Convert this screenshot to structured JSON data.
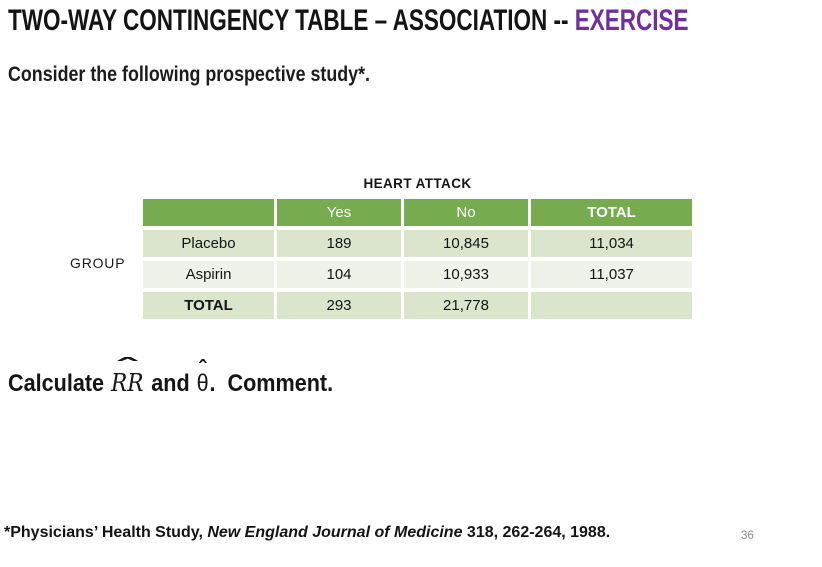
{
  "slide": {
    "title": {
      "main": "TWO-WAY CONTINGENCY TABLE – ASSOCIATION -- ",
      "highlight": "EXERCISE"
    },
    "subtitle": "Consider the following prospective study*.",
    "table": {
      "top_label": "HEART ATTACK",
      "side_label": "GROUP",
      "columns": [
        "",
        "Yes",
        "No",
        "TOTAL"
      ],
      "rows": [
        {
          "label": "Placebo",
          "values": [
            "189",
            "10,845",
            "11,034"
          ]
        },
        {
          "label": "Aspirin",
          "values": [
            "104",
            "10,933",
            "11,037"
          ]
        },
        {
          "label": "TOTAL",
          "values": [
            "293",
            "21,778",
            ""
          ]
        }
      ]
    },
    "exercise_line": {
      "prefix": "Calculate ",
      "rr": "RR",
      "hat": "ˆ",
      "and": " and ",
      "theta": "θ",
      "suffix": ".  Comment."
    },
    "footnote": {
      "pre": "*Physicians’ Health Study, ",
      "journal": "New England Journal of Medicine",
      "space": " ",
      "volume": "318",
      "post": ", 262-264, 1988."
    },
    "page_number": "36",
    "colors": {
      "highlight": "#7030A0",
      "header_bg": "#77AB4F",
      "header_text": "#FFFFFF",
      "band_dark": "#DBE5CE",
      "band_light": "#EEF2E8",
      "page_number_color": "#8C8C8C"
    }
  }
}
